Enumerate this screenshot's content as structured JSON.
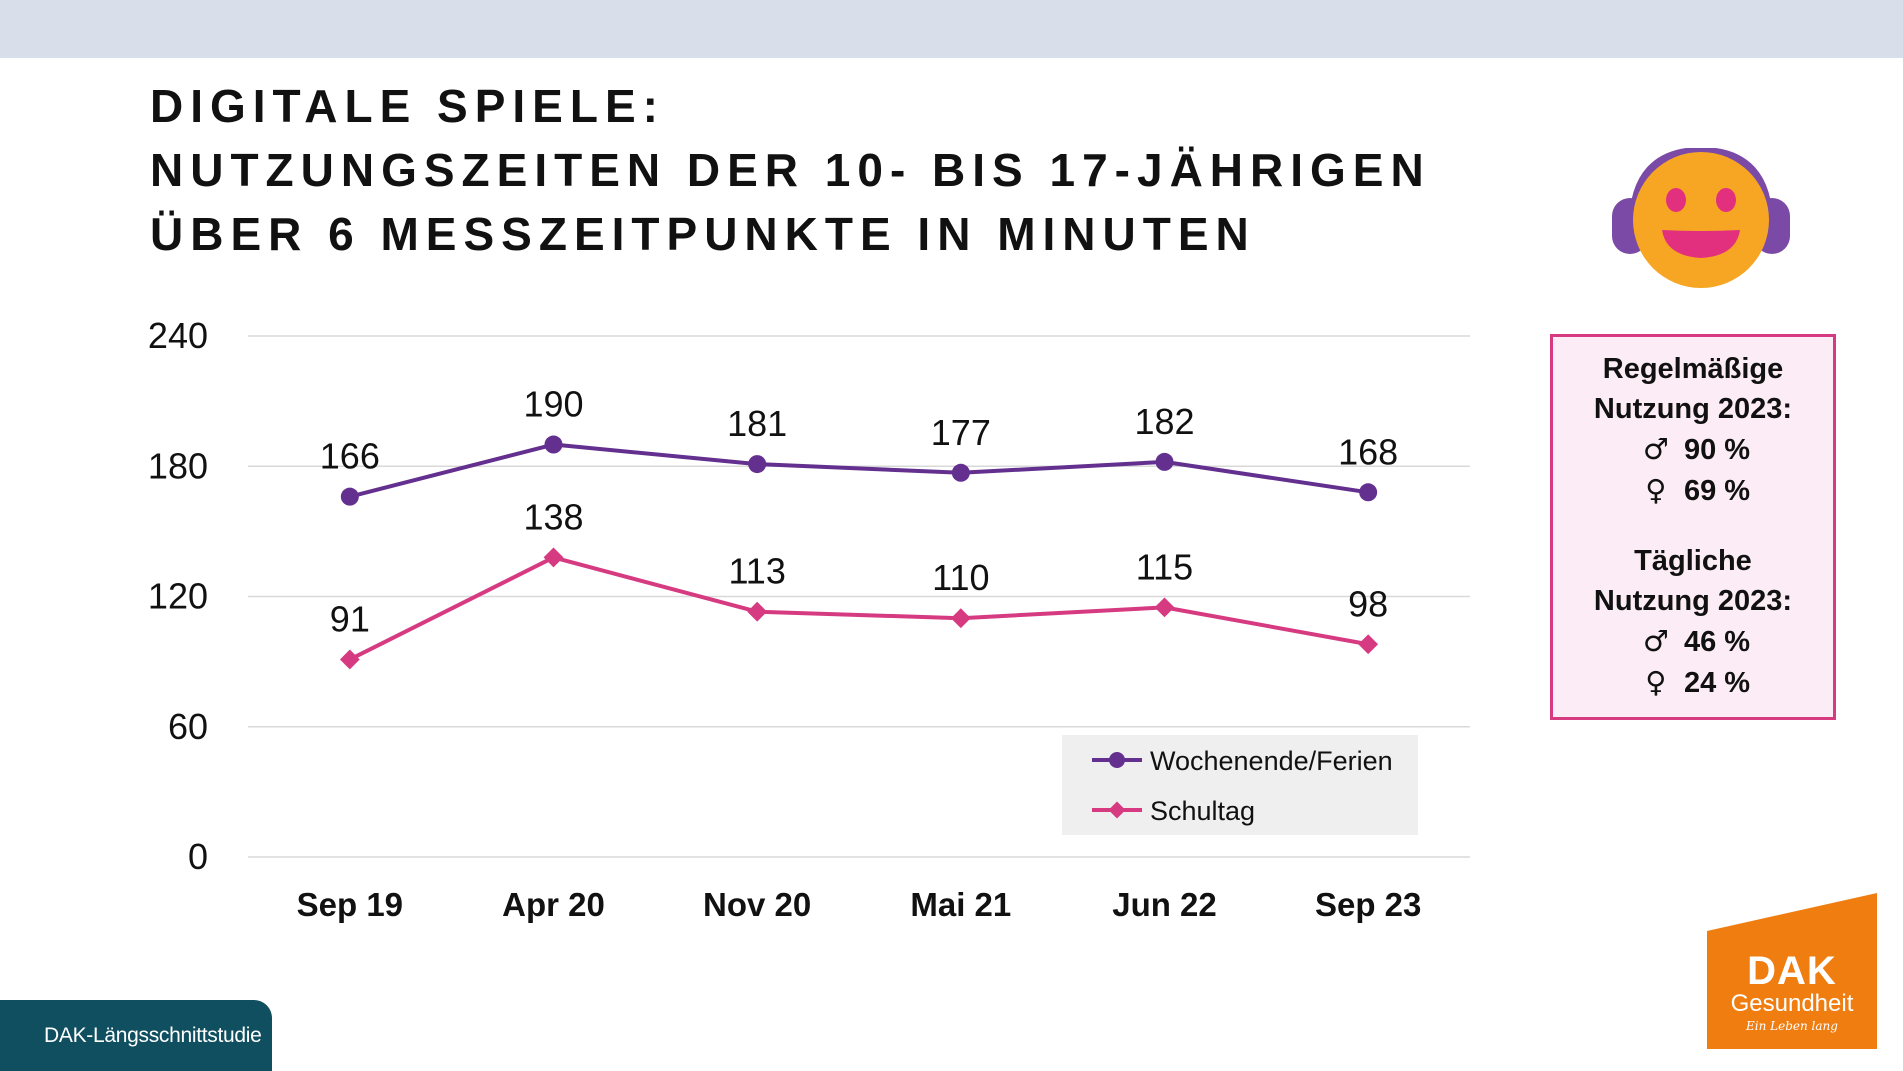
{
  "title": {
    "line1": "DIGITALE SPIELE:",
    "line2": "NUTZUNGSZEITEN DER 10- BIS 17-JÄHRIGEN",
    "line3": "ÜBER 6 MESSZEITPUNKTE IN MINUTEN"
  },
  "chart_data": {
    "type": "line",
    "categories": [
      "Sep 19",
      "Apr 20",
      "Nov 20",
      "Mai 21",
      "Jun 22",
      "Sep 23"
    ],
    "series": [
      {
        "name": "Wochenende/Ferien",
        "values": [
          166,
          190,
          181,
          177,
          182,
          168
        ],
        "color": "#64308f",
        "marker": "circle"
      },
      {
        "name": "Schultag",
        "values": [
          91,
          138,
          113,
          110,
          115,
          98
        ],
        "color": "#d63a80",
        "marker": "diamond"
      }
    ],
    "yticks": [
      0,
      60,
      120,
      180,
      240
    ],
    "ylim": [
      0,
      240
    ],
    "grid": true,
    "legend_position": "bottom-right",
    "data_labels": true
  },
  "info_box": {
    "regular": {
      "heading_line1": "Regelmäßige",
      "heading_line2": "Nutzung 2023:",
      "male_symbol": "♂",
      "male_value": "90 %",
      "female_symbol": "♀",
      "female_value": "69 %"
    },
    "daily": {
      "heading_line1": "Tägliche",
      "heading_line2": "Nutzung 2023:",
      "male_symbol": "♂",
      "male_value": "46 %",
      "female_symbol": "♀",
      "female_value": "24 %"
    }
  },
  "footer": {
    "label": "DAK-Längsschnittstudie"
  },
  "logo": {
    "word": "DAK",
    "sub": "Gesundheit",
    "claim": "Ein Leben lang"
  },
  "colors": {
    "accent_purple": "#64308f",
    "accent_pink": "#d63a80",
    "box_fill": "#fcecf5",
    "footer": "#0f4f5f",
    "logo": "#f07d10",
    "header_band": "#d8dfea"
  },
  "icons": {
    "mascot": "smiley-with-headphones-icon"
  }
}
